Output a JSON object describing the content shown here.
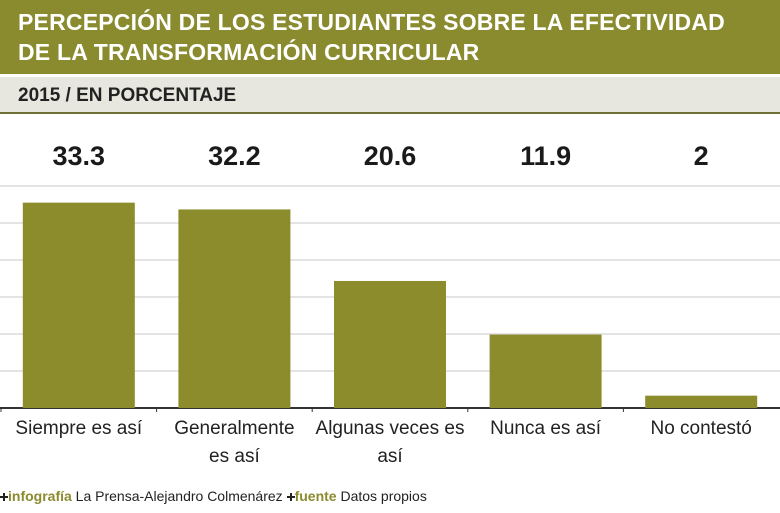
{
  "chart_data": {
    "type": "bar",
    "title": "Percepción de los estudiantes sobre la efectividad de la transformación curricular",
    "subtitle": "2015 / EN PORCENTAJE",
    "categories": [
      "Siempre es así",
      "Generalmente es así",
      "Algunas veces es así",
      "Nunca es así",
      "No contestó"
    ],
    "values": [
      33.3,
      32.2,
      20.6,
      11.9,
      2
    ],
    "color": "#8c8c2c",
    "ylim": [
      0,
      36
    ],
    "yticks": [
      0,
      6,
      12,
      18,
      24,
      30,
      36
    ],
    "grid": true
  },
  "footer": {
    "credit_label": "infografía",
    "credit": "La Prensa-Alejandro Colmenárez",
    "source_label": "fuente",
    "source": "Datos propios"
  }
}
